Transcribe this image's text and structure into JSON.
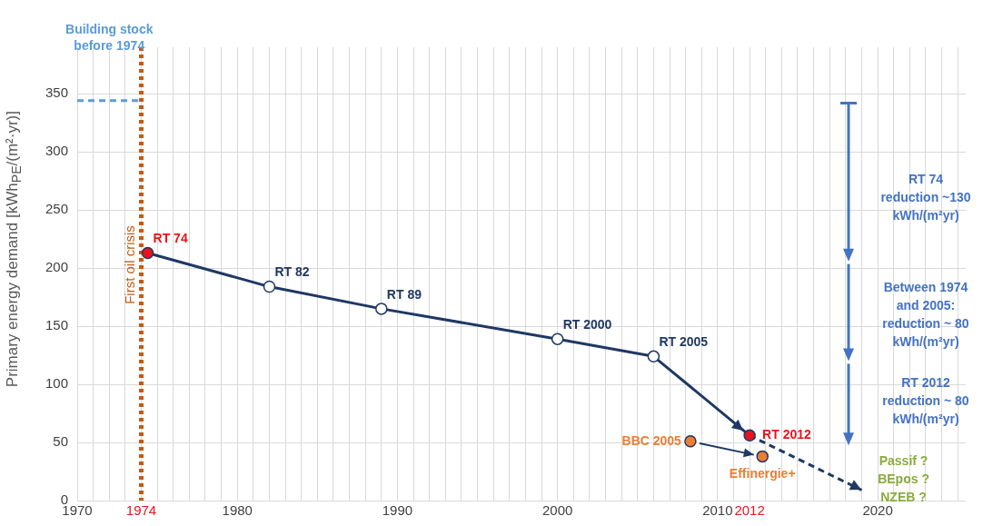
{
  "chart_data": {
    "type": "line",
    "ylabel": "Primary energy demand [kWh$_{PE}$/(m²·yr)]",
    "xlim": [
      1970,
      2025.5
    ],
    "ylim": [
      0,
      390
    ],
    "xticks": [
      1970,
      {
        "value": 1971,
        "label": null
      },
      {
        "value": 1972,
        "label": null
      },
      {
        "value": 1973,
        "label": null
      },
      1974,
      {
        "value": 1975,
        "label": null
      },
      {
        "value": 1976,
        "label": null
      },
      {
        "value": 1977,
        "label": null
      },
      {
        "value": 1978,
        "label": null
      },
      {
        "value": 1979,
        "label": null
      },
      1980,
      {
        "value": 1981,
        "label": null
      },
      {
        "value": 1982,
        "label": null
      },
      {
        "value": 1983,
        "label": null
      },
      {
        "value": 1984,
        "label": null
      },
      {
        "value": 1985,
        "label": null
      },
      {
        "value": 1986,
        "label": null
      },
      {
        "value": 1987,
        "label": null
      },
      {
        "value": 1988,
        "label": null
      },
      {
        "value": 1989,
        "label": null
      },
      1990,
      {
        "value": 1991,
        "label": null
      },
      {
        "value": 1992,
        "label": null
      },
      {
        "value": 1993,
        "label": null
      },
      {
        "value": 1994,
        "label": null
      },
      {
        "value": 1995,
        "label": null
      },
      {
        "value": 1996,
        "label": null
      },
      {
        "value": 1997,
        "label": null
      },
      {
        "value": 1998,
        "label": null
      },
      {
        "value": 1999,
        "label": null
      },
      2000,
      {
        "value": 2001,
        "label": null
      },
      {
        "value": 2002,
        "label": null
      },
      {
        "value": 2003,
        "label": null
      },
      {
        "value": 2004,
        "label": null
      },
      {
        "value": 2005,
        "label": null
      },
      {
        "value": 2006,
        "label": null
      },
      {
        "value": 2007,
        "label": null
      },
      {
        "value": 2008,
        "label": null
      },
      {
        "value": 2009,
        "label": null
      },
      2010,
      {
        "value": 2011,
        "label": null
      },
      2012,
      {
        "value": 2013,
        "label": null
      },
      {
        "value": 2014,
        "label": null
      },
      {
        "value": 2015,
        "label": null
      },
      {
        "value": 2016,
        "label": null
      },
      {
        "value": 2017,
        "label": null
      },
      {
        "value": 2018,
        "label": null
      },
      {
        "value": 2019,
        "label": null
      },
      2020,
      {
        "value": 2021,
        "label": null
      },
      {
        "value": 2022,
        "label": null
      },
      {
        "value": 2023,
        "label": null
      },
      {
        "value": 2024,
        "label": null
      },
      {
        "value": 2025,
        "label": null
      }
    ],
    "yticks": [
      0,
      50,
      100,
      150,
      200,
      250,
      300,
      350
    ],
    "grid": true,
    "legend": false,
    "marker": "circle",
    "ref_lines": [
      {
        "axis": "x",
        "value": 1974,
        "label": "First oil crisis",
        "color": "#c55a11",
        "line_style": "dotted"
      }
    ],
    "annotations": [
      "RT 74 reduction ~130 kWh/(m²yr)",
      "Between 1974 and 2005: reduction ~ 80 kWh/(m²yr)",
      "RT 2012 reduction ~ 80 kWh/(m²yr)",
      "Passif ? BEpos ? NZEB ?"
    ],
    "series": [
      {
        "color": "#1f3864",
        "x": [
          1974.4,
          1982,
          1989,
          2000,
          2006,
          2012
        ],
        "values": [
          213,
          184,
          165,
          139,
          124,
          56
        ],
        "colors": [
          "#e8141b",
          "#ffffff",
          "#ffffff",
          "#ffffff",
          "#ffffff",
          "#e8141b"
        ],
        "value_labels": [
          "RT 74",
          "RT 82",
          "RT 89",
          "RT 2000",
          "RT 2005",
          "RT 2012"
        ]
      },
      {
        "color": "#1f3864",
        "line_style": "dashed",
        "marker": "none",
        "x": [
          2012,
          2019
        ],
        "values": [
          56,
          9
        ]
      },
      {
        "type": "scatter",
        "color": "#1f3864",
        "x": [
          2008.3,
          2012.8
        ],
        "values": [
          51,
          38
        ],
        "colors": [
          "#ed7d31",
          "#ed7d31"
        ],
        "value_labels": [
          "BBC 2005",
          "Effinergie+"
        ]
      },
      {
        "name": "Building stock before 1974",
        "color": "#5b9bd5",
        "line_style": "dashed",
        "marker": "none",
        "x": [
          1970,
          1974
        ],
        "values": [
          344,
          344
        ]
      }
    ]
  }
}
